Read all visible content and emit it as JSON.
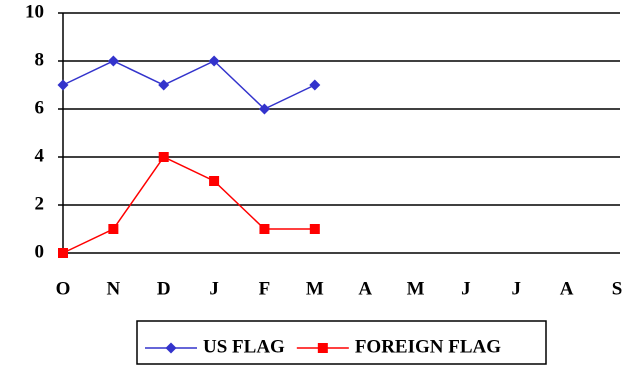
{
  "chart_data": {
    "type": "line",
    "categories": [
      "O",
      "N",
      "D",
      "J",
      "F",
      "M",
      "A",
      "M",
      "J",
      "J",
      "A",
      "S"
    ],
    "series": [
      {
        "name": "US FLAG",
        "color": "#3333cc",
        "marker": "diamond",
        "values": [
          7,
          8,
          7,
          8,
          6,
          7,
          null,
          null,
          null,
          null,
          null,
          null
        ]
      },
      {
        "name": "FOREIGN FLAG",
        "color": "#ff0000",
        "marker": "square",
        "values": [
          0,
          1,
          4,
          3,
          1,
          1,
          null,
          null,
          null,
          null,
          null,
          null
        ]
      }
    ],
    "ylim": [
      0,
      10
    ],
    "yticks": [
      0,
      2,
      4,
      6,
      8,
      10
    ],
    "grid": true,
    "legend": "bottom"
  }
}
